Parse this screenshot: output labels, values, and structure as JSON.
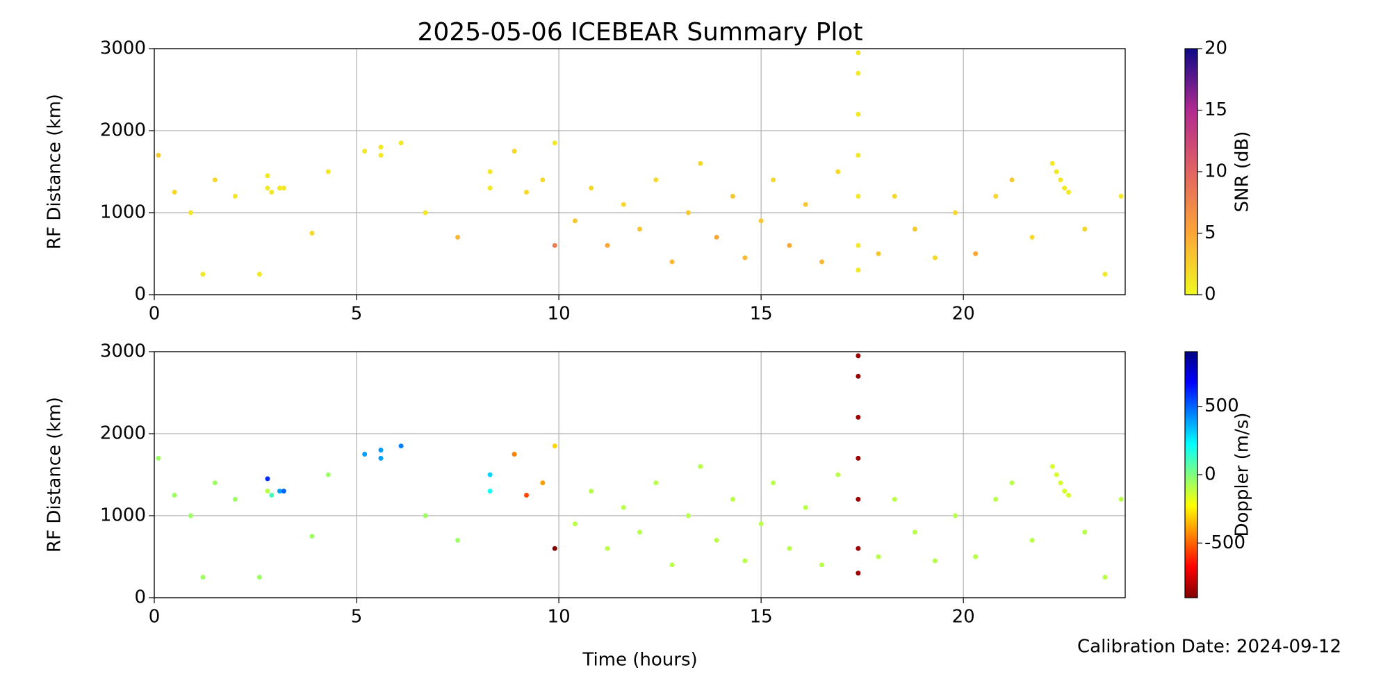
{
  "calibration": "Calibration Date: 2024-09-12",
  "chart_data": [
    {
      "type": "scatter",
      "title": "2025-05-06 ICEBEAR Summary Plot",
      "ylabel": "RF Distance (km)",
      "xlim": [
        0,
        24
      ],
      "xticks": [
        0,
        5,
        10,
        15,
        20
      ],
      "ylim": [
        0,
        3000
      ],
      "yticks": [
        0,
        1000,
        2000,
        3000
      ],
      "grid": true,
      "series": [
        {
          "x": [
            0.1,
            0.5,
            0.9,
            1.2,
            1.5,
            2.0,
            2.6,
            2.8,
            2.8,
            2.9,
            3.1,
            3.2,
            3.9,
            4.3,
            5.2,
            5.6,
            5.6,
            6.1,
            6.7,
            7.5,
            8.3,
            8.3,
            8.9,
            9.2,
            9.6,
            9.9,
            9.9,
            10.4,
            10.8,
            11.2,
            11.6,
            12.0,
            12.4,
            12.8,
            13.2,
            13.5,
            13.9,
            14.3,
            14.6,
            15.0,
            15.3,
            15.7,
            16.1,
            16.5,
            16.9,
            17.4,
            17.4,
            17.4,
            17.4,
            17.4,
            17.4,
            17.4,
            17.9,
            18.3,
            18.8,
            19.3,
            19.8,
            20.3,
            20.8,
            21.2,
            21.7,
            22.2,
            22.3,
            22.4,
            22.5,
            22.6,
            23.0,
            23.5,
            23.9
          ],
          "values": [
            1700,
            1250,
            1000,
            250,
            1400,
            1200,
            250,
            1450,
            1300,
            1250,
            1300,
            1300,
            750,
            1500,
            1750,
            1800,
            1700,
            1850,
            1000,
            700,
            1500,
            1300,
            1750,
            1250,
            1400,
            600,
            1850,
            900,
            1300,
            600,
            1100,
            800,
            1400,
            400,
            1000,
            1600,
            700,
            1200,
            450,
            900,
            1400,
            600,
            1100,
            400,
            1500,
            300,
            600,
            1200,
            1700,
            2200,
            2700,
            2950,
            500,
            1200,
            800,
            450,
            1000,
            500,
            1200,
            1400,
            700,
            1600,
            1500,
            1400,
            1300,
            1250,
            800,
            250,
            1200
          ],
          "c": [
            3,
            2,
            1,
            1,
            2,
            1,
            1,
            1,
            1,
            1,
            1,
            1,
            2,
            1,
            1,
            1,
            1,
            1,
            1,
            4,
            1,
            1,
            2,
            2,
            2,
            8,
            1,
            3,
            2,
            5,
            2,
            3,
            2,
            4,
            3,
            2,
            5,
            3,
            4,
            3,
            2,
            5,
            3,
            4,
            2,
            1,
            1,
            1,
            1,
            1,
            1,
            1,
            3,
            2,
            3,
            2,
            2,
            5,
            2,
            3,
            2,
            1,
            1,
            1,
            1,
            1,
            2,
            1,
            1
          ]
        }
      ],
      "colorbar": {
        "label": "SNR (dB)",
        "lim": [
          0,
          20
        ],
        "ticks": [
          0,
          5,
          10,
          15,
          20
        ],
        "cmap": "plasma_r"
      }
    },
    {
      "type": "scatter",
      "ylabel": "RF Distance (km)",
      "xlabel": "Time (hours)",
      "xlim": [
        0,
        24
      ],
      "xticks": [
        0,
        5,
        10,
        15,
        20
      ],
      "ylim": [
        0,
        3000
      ],
      "yticks": [
        0,
        1000,
        2000,
        3000
      ],
      "grid": true,
      "series": [
        {
          "x": [
            0.1,
            0.5,
            0.9,
            1.2,
            1.5,
            2.0,
            2.6,
            2.8,
            2.8,
            2.9,
            3.1,
            3.2,
            3.9,
            4.3,
            5.2,
            5.6,
            5.6,
            6.1,
            6.7,
            7.5,
            8.3,
            8.3,
            8.9,
            9.2,
            9.6,
            9.9,
            9.9,
            10.4,
            10.8,
            11.2,
            11.6,
            12.0,
            12.4,
            12.8,
            13.2,
            13.5,
            13.9,
            14.3,
            14.6,
            15.0,
            15.3,
            15.7,
            16.1,
            16.5,
            16.9,
            17.4,
            17.4,
            17.4,
            17.4,
            17.4,
            17.4,
            17.4,
            17.9,
            18.3,
            18.8,
            19.3,
            19.8,
            20.3,
            20.8,
            21.2,
            21.7,
            22.2,
            22.3,
            22.4,
            22.5,
            22.6,
            23.0,
            23.5,
            23.9
          ],
          "values": [
            1700,
            1250,
            1000,
            250,
            1400,
            1200,
            250,
            1450,
            1300,
            1250,
            1300,
            1300,
            750,
            1500,
            1750,
            1800,
            1700,
            1850,
            1000,
            700,
            1500,
            1300,
            1750,
            1250,
            1400,
            600,
            1850,
            900,
            1300,
            600,
            1100,
            800,
            1400,
            400,
            1000,
            1600,
            700,
            1200,
            450,
            900,
            1400,
            600,
            1100,
            400,
            1500,
            300,
            600,
            1200,
            1700,
            2200,
            2700,
            2950,
            500,
            1200,
            800,
            450,
            1000,
            500,
            1200,
            1400,
            700,
            1600,
            1500,
            1400,
            1300,
            1250,
            800,
            250,
            1200
          ],
          "c": [
            -50,
            -50,
            -50,
            -50,
            -50,
            -50,
            -50,
            600,
            -100,
            100,
            400,
            500,
            -50,
            -50,
            400,
            400,
            400,
            450,
            -50,
            -50,
            300,
            200,
            -450,
            -550,
            -400,
            -900,
            -300,
            -100,
            -100,
            -100,
            -100,
            -100,
            -100,
            -100,
            -100,
            -100,
            -100,
            -100,
            -100,
            -100,
            -100,
            -100,
            -100,
            -100,
            -100,
            -850,
            -850,
            -850,
            -850,
            -850,
            -850,
            -850,
            -100,
            -100,
            -100,
            -100,
            -100,
            -100,
            -100,
            -100,
            -100,
            -150,
            -150,
            -150,
            -150,
            -150,
            -100,
            -100,
            -100
          ]
        }
      ],
      "colorbar": {
        "label": "Doppler (m/s)",
        "lim": [
          -900,
          900
        ],
        "ticks": [
          -500,
          0,
          500
        ],
        "cmap": "jet_r"
      }
    }
  ]
}
